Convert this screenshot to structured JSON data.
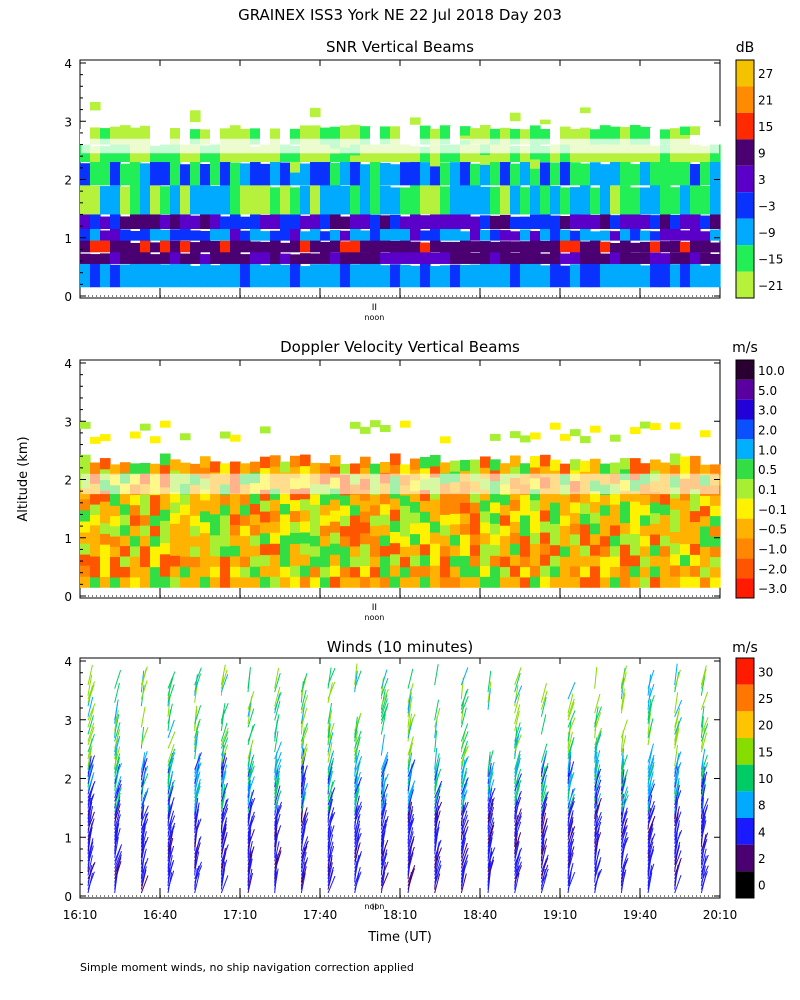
{
  "figure": {
    "title": "GRAINEX ISS3 York NE  22 Jul 2018 Day 203",
    "ylabel": "Altitude (km)",
    "xlabel": "Time (UT)",
    "footnote": "Simple moment winds, no ship navigation correction applied",
    "noon_label": "noon",
    "noon_marker": "II"
  },
  "chart_data": [
    {
      "type": "heatmap",
      "title": "SNR Vertical Beams",
      "xlabel": "",
      "ylabel": "",
      "unit": "dB",
      "ylim": [
        0,
        4
      ],
      "yticks": [
        "0",
        "1",
        "2",
        "3",
        "4"
      ],
      "xlim": [
        "16:10",
        "20:10"
      ],
      "colorbar": {
        "labels": [
          "27",
          "21",
          "15",
          "9",
          "3",
          "−3",
          "−9",
          "−15",
          "−21"
        ],
        "colors": [
          "#f5c200",
          "#ff8c00",
          "#ff2a00",
          "#4b0072",
          "#5a00c8",
          "#0a32ff",
          "#00aaff",
          "#22ee55",
          "#b6f23c"
        ]
      },
      "layers": [
        {
          "bottom_km": 0.15,
          "top_km": 0.55,
          "level": "-3 to -9"
        },
        {
          "bottom_km": 0.55,
          "top_km": 0.95,
          "level": "9 to 15"
        },
        {
          "bottom_km": 0.95,
          "top_km": 1.4,
          "level": "-3"
        },
        {
          "bottom_km": 1.4,
          "top_km": 2.3,
          "level": "-9 to -21"
        },
        {
          "bottom_km": 2.3,
          "top_km": 2.9,
          "level": "-21"
        }
      ]
    },
    {
      "type": "heatmap",
      "title": "Doppler Velocity Vertical Beams",
      "xlabel": "",
      "ylabel": "",
      "unit": "m/s",
      "ylim": [
        0,
        4
      ],
      "yticks": [
        "0",
        "1",
        "2",
        "3",
        "4"
      ],
      "xlim": [
        "16:10",
        "20:10"
      ],
      "colorbar": {
        "labels": [
          "10.0",
          "5.0",
          "3.0",
          "2.0",
          "1.0",
          "0.5",
          "0.1",
          "−0.1",
          "−0.5",
          "−1.0",
          "−2.0",
          "−3.0"
        ],
        "colors": [
          "#2a0030",
          "#5a00a0",
          "#2200d8",
          "#0a50ff",
          "#00b0ff",
          "#33dd44",
          "#a8ee33",
          "#fff200",
          "#ffb300",
          "#ff8800",
          "#ff5500",
          "#ff1a00"
        ]
      }
    },
    {
      "type": "barbs",
      "title": "Winds (10 minutes)",
      "xlabel": "Time (UT)",
      "ylabel": "",
      "unit": "m/s",
      "ylim": [
        0,
        4
      ],
      "yticks": [
        "0",
        "1",
        "2",
        "3",
        "4"
      ],
      "x_tick_labels": [
        "16:10",
        "16:40",
        "17:10",
        "17:40",
        "18:10",
        "18:40",
        "19:10",
        "19:40",
        "20:10"
      ],
      "colorbar": {
        "labels": [
          "30",
          "25",
          "20",
          "15",
          "10",
          "8",
          "4",
          "2",
          "0"
        ],
        "colors": [
          "#ff1a00",
          "#ff7700",
          "#ffc400",
          "#88dd00",
          "#00cc66",
          "#00aaff",
          "#1a1aff",
          "#4b0072",
          "#000000"
        ]
      },
      "profiles_per_hour": 6,
      "max_speed_ms": 33
    }
  ]
}
